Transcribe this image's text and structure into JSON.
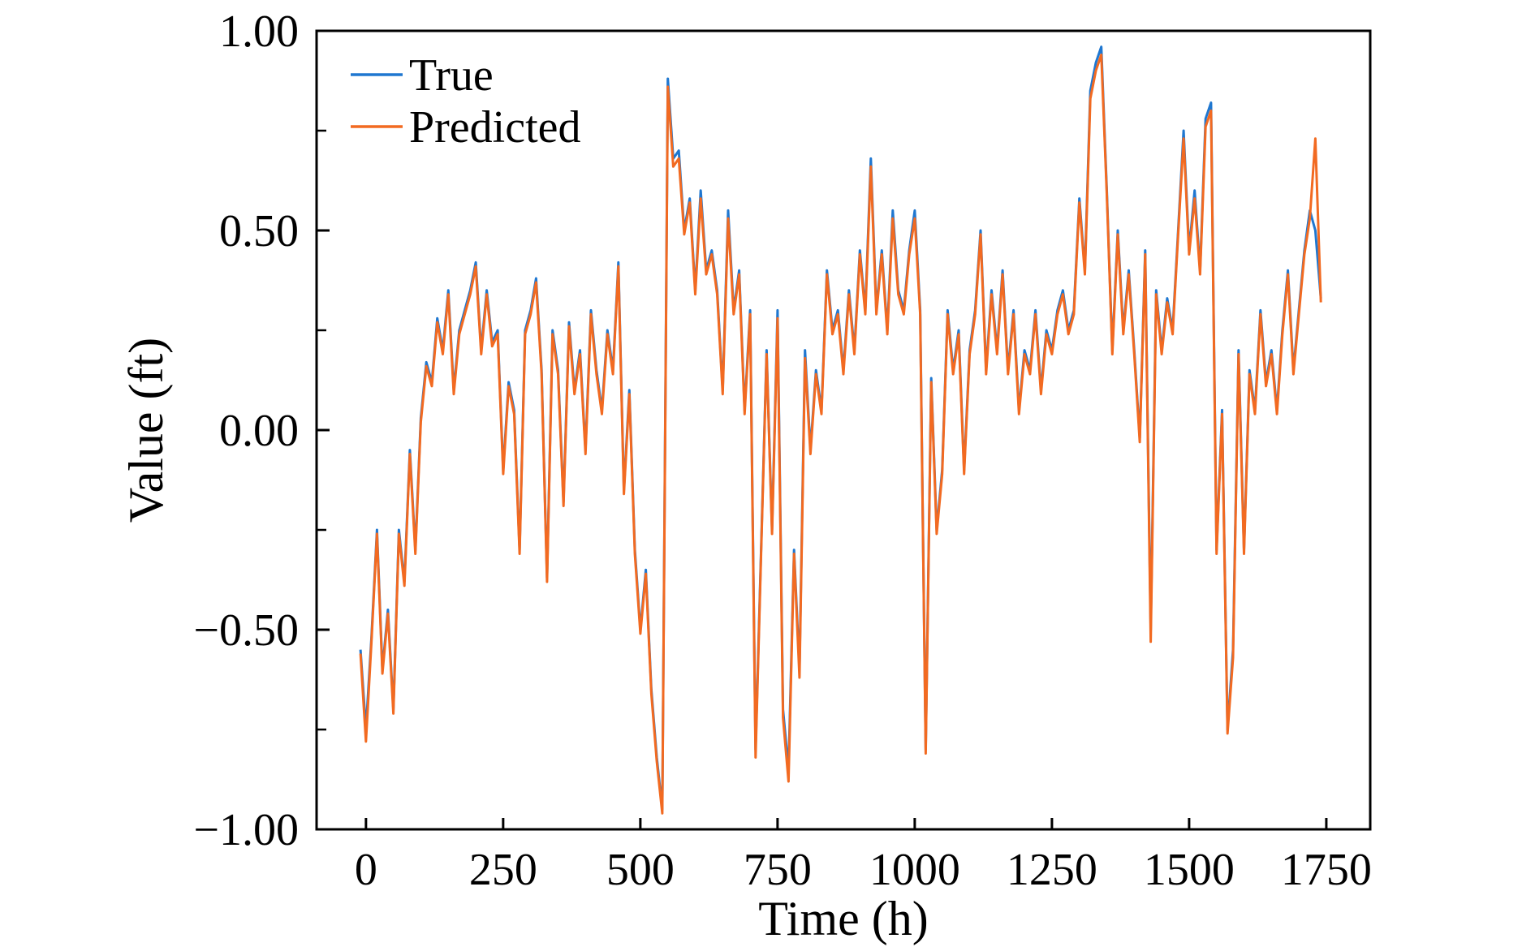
{
  "chart_data": {
    "type": "line",
    "title": "",
    "xlabel": "Time (h)",
    "ylabel": "Value (ft)",
    "xlim": [
      -90,
      1830
    ],
    "ylim": [
      -1.0,
      1.0
    ],
    "xticks": [
      0,
      250,
      500,
      750,
      1000,
      1250,
      1500,
      1750
    ],
    "xtick_labels": [
      "0",
      "250",
      "500",
      "750",
      "1000",
      "1250",
      "1500",
      "1750"
    ],
    "yticks": [
      -1.0,
      -0.5,
      0.0,
      0.5,
      1.0
    ],
    "ytick_labels": [
      "−1.00",
      "−0.50",
      "0.00",
      "0.50",
      "1.00"
    ],
    "y_minor_ticks": [
      -0.75,
      -0.25,
      0.25,
      0.75
    ],
    "grid": false,
    "legend_position": "upper-left",
    "colors": {
      "True": "#1f77d0",
      "Predicted": "#f26a21"
    },
    "series": [
      {
        "name": "True",
        "x": [
          -10,
          0,
          10,
          20,
          30,
          40,
          50,
          60,
          70,
          80,
          90,
          100,
          110,
          120,
          130,
          140,
          150,
          160,
          170,
          180,
          190,
          200,
          210,
          220,
          230,
          240,
          250,
          260,
          270,
          280,
          290,
          300,
          310,
          320,
          330,
          340,
          350,
          360,
          370,
          380,
          390,
          400,
          410,
          420,
          430,
          440,
          450,
          460,
          470,
          480,
          490,
          500,
          510,
          520,
          530,
          540,
          550,
          560,
          570,
          580,
          590,
          600,
          610,
          620,
          630,
          640,
          650,
          660,
          670,
          680,
          690,
          700,
          710,
          720,
          730,
          740,
          750,
          760,
          770,
          780,
          790,
          800,
          810,
          820,
          830,
          840,
          850,
          860,
          870,
          880,
          890,
          900,
          910,
          920,
          930,
          940,
          950,
          960,
          970,
          980,
          990,
          1000,
          1010,
          1020,
          1030,
          1040,
          1050,
          1060,
          1070,
          1080,
          1090,
          1100,
          1110,
          1120,
          1130,
          1140,
          1150,
          1160,
          1170,
          1180,
          1190,
          1200,
          1210,
          1220,
          1230,
          1240,
          1250,
          1260,
          1270,
          1280,
          1290,
          1300,
          1310,
          1320,
          1330,
          1340,
          1350,
          1360,
          1370,
          1380,
          1390,
          1400,
          1410,
          1420,
          1430,
          1440,
          1450,
          1460,
          1470,
          1480,
          1490,
          1500,
          1510,
          1520,
          1530,
          1540,
          1550,
          1560,
          1570,
          1580,
          1590,
          1600,
          1610,
          1620,
          1630,
          1640,
          1650,
          1660,
          1670,
          1680,
          1690,
          1700,
          1710,
          1720,
          1730,
          1740
        ],
        "y": [
          -0.55,
          -0.75,
          -0.52,
          -0.25,
          -0.6,
          -0.45,
          -0.7,
          -0.25,
          -0.38,
          -0.05,
          -0.3,
          0.03,
          0.17,
          0.12,
          0.28,
          0.2,
          0.35,
          0.1,
          0.25,
          0.3,
          0.35,
          0.42,
          0.2,
          0.35,
          0.22,
          0.25,
          -0.1,
          0.12,
          0.05,
          -0.3,
          0.25,
          0.3,
          0.38,
          0.15,
          -0.37,
          0.25,
          0.15,
          -0.18,
          0.27,
          0.1,
          0.2,
          -0.05,
          0.3,
          0.15,
          0.05,
          0.25,
          0.15,
          0.42,
          -0.15,
          0.1,
          -0.3,
          -0.5,
          -0.35,
          -0.65,
          -0.82,
          -0.95,
          0.88,
          0.68,
          0.7,
          0.5,
          0.58,
          0.35,
          0.6,
          0.4,
          0.45,
          0.35,
          0.1,
          0.55,
          0.3,
          0.4,
          0.05,
          0.3,
          -0.8,
          -0.3,
          0.2,
          -0.25,
          0.3,
          -0.7,
          -0.85,
          -0.3,
          -0.6,
          0.2,
          -0.05,
          0.15,
          0.05,
          0.4,
          0.25,
          0.3,
          0.15,
          0.35,
          0.2,
          0.45,
          0.3,
          0.68,
          0.3,
          0.45,
          0.25,
          0.55,
          0.35,
          0.3,
          0.45,
          0.55,
          0.3,
          -0.8,
          0.13,
          -0.25,
          -0.1,
          0.3,
          0.15,
          0.25,
          -0.1,
          0.2,
          0.3,
          0.5,
          0.15,
          0.35,
          0.2,
          0.4,
          0.15,
          0.3,
          0.05,
          0.2,
          0.15,
          0.3,
          0.1,
          0.25,
          0.2,
          0.3,
          0.35,
          0.25,
          0.3,
          0.58,
          0.4,
          0.85,
          0.92,
          0.96,
          0.6,
          0.2,
          0.5,
          0.25,
          0.4,
          0.2,
          -0.02,
          0.45,
          -0.5,
          0.35,
          0.2,
          0.33,
          0.25,
          0.5,
          0.75,
          0.45,
          0.6,
          0.4,
          0.78,
          0.82,
          -0.3,
          0.05,
          -0.75,
          -0.55,
          0.2,
          -0.3,
          0.15,
          0.05,
          0.3,
          0.12,
          0.2,
          0.05,
          0.25,
          0.4,
          0.15,
          0.3,
          0.45,
          0.55,
          0.5,
          0.33
        ]
      },
      {
        "name": "Predicted",
        "x": [
          -10,
          0,
          10,
          20,
          30,
          40,
          50,
          60,
          70,
          80,
          90,
          100,
          110,
          120,
          130,
          140,
          150,
          160,
          170,
          180,
          190,
          200,
          210,
          220,
          230,
          240,
          250,
          260,
          270,
          280,
          290,
          300,
          310,
          320,
          330,
          340,
          350,
          360,
          370,
          380,
          390,
          400,
          410,
          420,
          430,
          440,
          450,
          460,
          470,
          480,
          490,
          500,
          510,
          520,
          530,
          540,
          550,
          560,
          570,
          580,
          590,
          600,
          610,
          620,
          630,
          640,
          650,
          660,
          670,
          680,
          690,
          700,
          710,
          720,
          730,
          740,
          750,
          760,
          770,
          780,
          790,
          800,
          810,
          820,
          830,
          840,
          850,
          860,
          870,
          880,
          890,
          900,
          910,
          920,
          930,
          940,
          950,
          960,
          970,
          980,
          990,
          1000,
          1010,
          1020,
          1030,
          1040,
          1050,
          1060,
          1070,
          1080,
          1090,
          1100,
          1110,
          1120,
          1130,
          1140,
          1150,
          1160,
          1170,
          1180,
          1190,
          1200,
          1210,
          1220,
          1230,
          1240,
          1250,
          1260,
          1270,
          1280,
          1290,
          1300,
          1310,
          1320,
          1330,
          1340,
          1350,
          1360,
          1370,
          1380,
          1390,
          1400,
          1410,
          1420,
          1430,
          1440,
          1450,
          1460,
          1470,
          1480,
          1490,
          1500,
          1510,
          1520,
          1530,
          1540,
          1550,
          1560,
          1570,
          1580,
          1590,
          1600,
          1610,
          1620,
          1630,
          1640,
          1650,
          1660,
          1670,
          1680,
          1690,
          1700,
          1710,
          1720,
          1730,
          1740
        ],
        "y": [
          -0.56,
          -0.78,
          -0.53,
          -0.26,
          -0.61,
          -0.46,
          -0.71,
          -0.26,
          -0.39,
          -0.06,
          -0.31,
          0.02,
          0.16,
          0.11,
          0.27,
          0.19,
          0.34,
          0.09,
          0.24,
          0.29,
          0.34,
          0.41,
          0.19,
          0.34,
          0.21,
          0.24,
          -0.11,
          0.11,
          0.04,
          -0.31,
          0.24,
          0.29,
          0.37,
          0.14,
          -0.38,
          0.24,
          0.14,
          -0.19,
          0.26,
          0.09,
          0.19,
          -0.06,
          0.29,
          0.14,
          0.04,
          0.24,
          0.14,
          0.41,
          -0.16,
          0.09,
          -0.31,
          -0.51,
          -0.36,
          -0.66,
          -0.83,
          -0.96,
          0.86,
          0.66,
          0.68,
          0.49,
          0.57,
          0.34,
          0.58,
          0.39,
          0.44,
          0.34,
          0.09,
          0.53,
          0.29,
          0.39,
          0.04,
          0.29,
          -0.82,
          -0.31,
          0.19,
          -0.26,
          0.28,
          -0.72,
          -0.88,
          -0.31,
          -0.62,
          0.18,
          -0.06,
          0.14,
          0.04,
          0.39,
          0.24,
          0.29,
          0.14,
          0.34,
          0.19,
          0.44,
          0.29,
          0.66,
          0.29,
          0.44,
          0.24,
          0.53,
          0.34,
          0.29,
          0.44,
          0.53,
          0.29,
          -0.81,
          0.12,
          -0.26,
          -0.11,
          0.29,
          0.14,
          0.24,
          -0.11,
          0.19,
          0.29,
          0.49,
          0.14,
          0.34,
          0.19,
          0.39,
          0.14,
          0.29,
          0.04,
          0.19,
          0.14,
          0.29,
          0.09,
          0.24,
          0.19,
          0.29,
          0.34,
          0.24,
          0.29,
          0.57,
          0.39,
          0.83,
          0.9,
          0.94,
          0.59,
          0.19,
          0.49,
          0.24,
          0.39,
          0.19,
          -0.03,
          0.44,
          -0.53,
          0.34,
          0.19,
          0.32,
          0.24,
          0.49,
          0.73,
          0.44,
          0.58,
          0.39,
          0.76,
          0.8,
          -0.31,
          0.04,
          -0.76,
          -0.57,
          0.19,
          -0.31,
          0.14,
          0.04,
          0.29,
          0.11,
          0.19,
          0.04,
          0.24,
          0.39,
          0.14,
          0.29,
          0.44,
          0.53,
          0.73,
          0.32
        ]
      }
    ]
  }
}
